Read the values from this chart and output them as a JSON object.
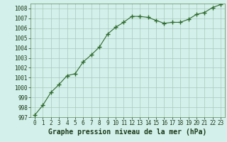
{
  "x": [
    0,
    1,
    2,
    3,
    4,
    5,
    6,
    7,
    8,
    9,
    10,
    11,
    12,
    13,
    14,
    15,
    16,
    17,
    18,
    19,
    20,
    21,
    22,
    23
  ],
  "y": [
    997.2,
    998.2,
    999.5,
    1000.3,
    1001.2,
    1001.4,
    1002.6,
    1003.3,
    1004.1,
    1005.4,
    1006.1,
    1006.6,
    1007.2,
    1007.2,
    1007.1,
    1006.8,
    1006.5,
    1006.6,
    1006.6,
    1006.9,
    1007.4,
    1007.6,
    1008.1,
    1008.4
  ],
  "line_color": "#2d6a2d",
  "marker_color": "#2d6a2d",
  "bg_color": "#d4f0ea",
  "grid_color": "#a8c8c0",
  "xlabel": "Graphe pression niveau de la mer (hPa)",
  "xlabel_fontsize": 7,
  "ylim": [
    997,
    1008.5
  ],
  "xlim": [
    -0.5,
    23.5
  ],
  "yticks": [
    997,
    998,
    999,
    1000,
    1001,
    1002,
    1003,
    1004,
    1005,
    1006,
    1007,
    1008
  ],
  "xticks": [
    0,
    1,
    2,
    3,
    4,
    5,
    6,
    7,
    8,
    9,
    10,
    11,
    12,
    13,
    14,
    15,
    16,
    17,
    18,
    19,
    20,
    21,
    22,
    23
  ],
  "tick_fontsize": 5.5,
  "marker_size": 4,
  "line_width": 0.8
}
